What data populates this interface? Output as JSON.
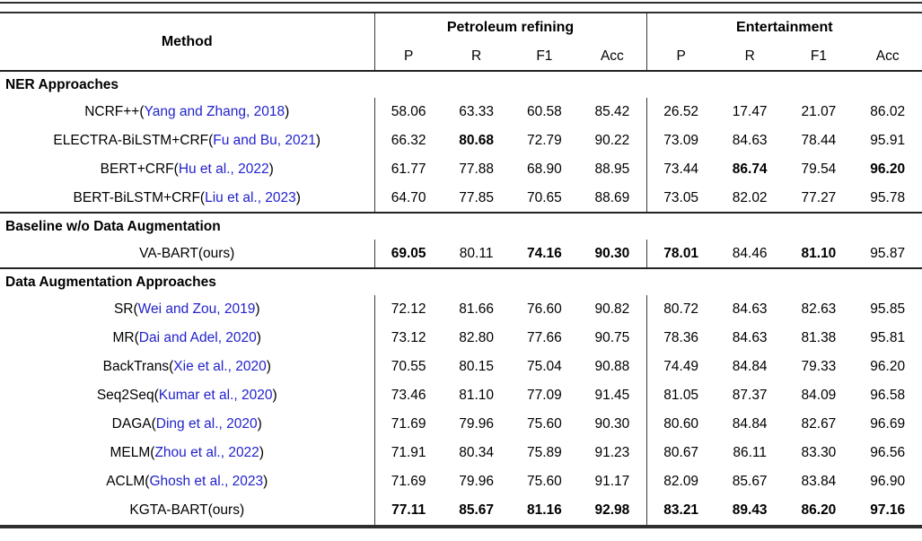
{
  "accent_colors": {
    "citation_blue": "#2222cc",
    "rule_dark": "#2e2e2e",
    "text_black": "#000000"
  },
  "table": {
    "header": {
      "method": "Method",
      "groups": [
        {
          "label": "Petroleum refining",
          "metrics": [
            "P",
            "R",
            "F1",
            "Acc"
          ]
        },
        {
          "label": "Entertainment",
          "metrics": [
            "P",
            "R",
            "F1",
            "Acc"
          ]
        }
      ]
    },
    "sections": [
      {
        "title": "NER Approaches",
        "rows": [
          {
            "pre": "NCRF++(",
            "cite": "Yang and Zhang, 2018",
            "post": ")",
            "values": [
              "58.06",
              "63.33",
              "60.58",
              "85.42",
              "26.52",
              "17.47",
              "21.07",
              "86.02"
            ],
            "bold": [
              false,
              false,
              false,
              false,
              false,
              false,
              false,
              false
            ]
          },
          {
            "pre": "ELECTRA-BiLSTM+CRF(",
            "cite": "Fu and Bu, 2021",
            "post": ")",
            "values": [
              "66.32",
              "80.68",
              "72.79",
              "90.22",
              "73.09",
              "84.63",
              "78.44",
              "95.91"
            ],
            "bold": [
              false,
              true,
              false,
              false,
              false,
              false,
              false,
              false
            ]
          },
          {
            "pre": "BERT+CRF(",
            "cite": "Hu et al., 2022",
            "post": ")",
            "values": [
              "61.77",
              "77.88",
              "68.90",
              "88.95",
              "73.44",
              "86.74",
              "79.54",
              "96.20"
            ],
            "bold": [
              false,
              false,
              false,
              false,
              false,
              true,
              false,
              true
            ]
          },
          {
            "pre": "BERT-BiLSTM+CRF(",
            "cite": "Liu et al., 2023",
            "post": ")",
            "values": [
              "64.70",
              "77.85",
              "70.65",
              "88.69",
              "73.05",
              "82.02",
              "77.27",
              "95.78"
            ],
            "bold": [
              false,
              false,
              false,
              false,
              false,
              false,
              false,
              false
            ]
          }
        ]
      },
      {
        "title": "Baseline w/o Data Augmentation",
        "rows": [
          {
            "pre": "VA-BART(ours)",
            "cite": "",
            "post": "",
            "values": [
              "69.05",
              "80.11",
              "74.16",
              "90.30",
              "78.01",
              "84.46",
              "81.10",
              "95.87"
            ],
            "bold": [
              true,
              false,
              true,
              true,
              true,
              false,
              true,
              false
            ]
          }
        ]
      },
      {
        "title": "Data Augmentation Approaches",
        "rows": [
          {
            "pre": "SR(",
            "cite": "Wei and Zou, 2019",
            "post": ")",
            "values": [
              "72.12",
              "81.66",
              "76.60",
              "90.82",
              "80.72",
              "84.63",
              "82.63",
              "95.85"
            ],
            "bold": [
              false,
              false,
              false,
              false,
              false,
              false,
              false,
              false
            ]
          },
          {
            "pre": "MR(",
            "cite": "Dai and Adel, 2020",
            "post": ")",
            "values": [
              "73.12",
              "82.80",
              "77.66",
              "90.75",
              "78.36",
              "84.63",
              "81.38",
              "95.81"
            ],
            "bold": [
              false,
              false,
              false,
              false,
              false,
              false,
              false,
              false
            ]
          },
          {
            "pre": "BackTrans(",
            "cite": "Xie et al., 2020",
            "post": ")",
            "values": [
              "70.55",
              "80.15",
              "75.04",
              "90.88",
              "74.49",
              "84.84",
              "79.33",
              "96.20"
            ],
            "bold": [
              false,
              false,
              false,
              false,
              false,
              false,
              false,
              false
            ]
          },
          {
            "pre": "Seq2Seq(",
            "cite": "Kumar et al., 2020",
            "post": ")",
            "values": [
              "73.46",
              "81.10",
              "77.09",
              "91.45",
              "81.05",
              "87.37",
              "84.09",
              "96.58"
            ],
            "bold": [
              false,
              false,
              false,
              false,
              false,
              false,
              false,
              false
            ]
          },
          {
            "pre": "DAGA(",
            "cite": "Ding et al., 2020",
            "post": ")",
            "values": [
              "71.69",
              "79.96",
              "75.60",
              "90.30",
              "80.60",
              "84.84",
              "82.67",
              "96.69"
            ],
            "bold": [
              false,
              false,
              false,
              false,
              false,
              false,
              false,
              false
            ]
          },
          {
            "pre": "MELM(",
            "cite": "Zhou et al., 2022",
            "post": ")",
            "values": [
              "71.91",
              "80.34",
              "75.89",
              "91.23",
              "80.67",
              "86.11",
              "83.30",
              "96.56"
            ],
            "bold": [
              false,
              false,
              false,
              false,
              false,
              false,
              false,
              false
            ]
          },
          {
            "pre": "ACLM(",
            "cite": "Ghosh et al., 2023",
            "post": ")",
            "values": [
              "71.69",
              "79.96",
              "75.60",
              "91.17",
              "82.09",
              "85.67",
              "83.84",
              "96.90"
            ],
            "bold": [
              false,
              false,
              false,
              false,
              false,
              false,
              false,
              false
            ]
          },
          {
            "pre": "KGTA-BART(ours)",
            "cite": "",
            "post": "",
            "values": [
              "77.11",
              "85.67",
              "81.16",
              "92.98",
              "83.21",
              "89.43",
              "86.20",
              "97.16"
            ],
            "bold": [
              true,
              true,
              true,
              true,
              true,
              true,
              true,
              true
            ]
          }
        ]
      }
    ]
  }
}
